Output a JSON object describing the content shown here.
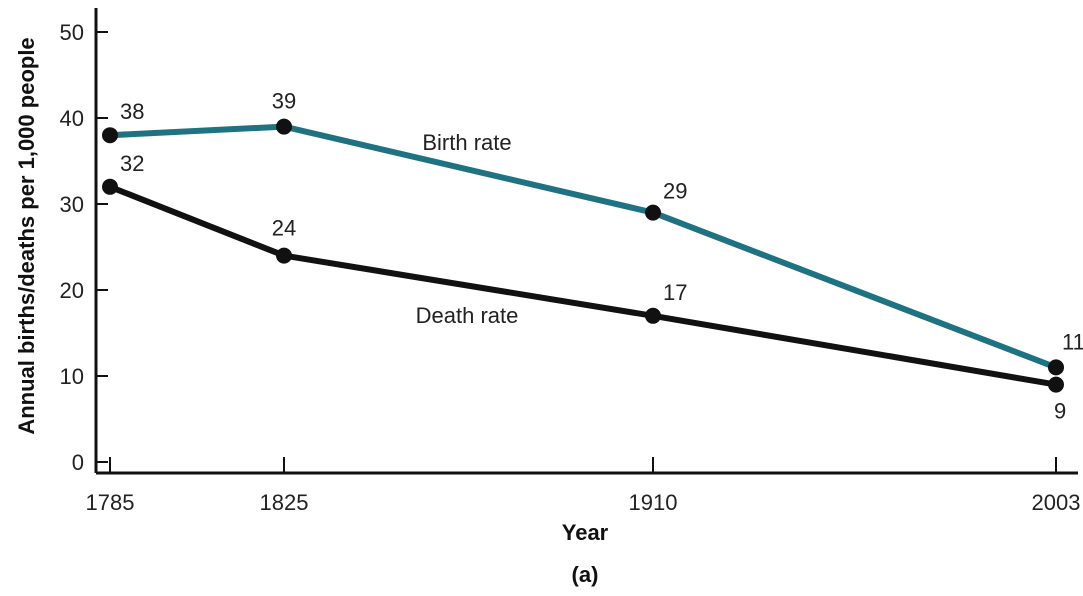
{
  "chart_data": {
    "type": "line",
    "xlabel": "Year",
    "ylabel": "Annual births/deaths per 1,000 people",
    "caption": "(a)",
    "x": [
      1785,
      1825,
      1910,
      2003
    ],
    "x_tick_labels": [
      "1785",
      "1825",
      "1910",
      "2003"
    ],
    "y_ticks": [
      0,
      10,
      20,
      30,
      40,
      50
    ],
    "y_tick_labels": [
      "0",
      "10",
      "20",
      "30",
      "40",
      "50"
    ],
    "ylim": [
      0,
      50
    ],
    "grid": false,
    "series": [
      {
        "name": "Birth rate",
        "color": "#1f7281",
        "values": [
          38,
          39,
          29,
          11
        ],
        "value_labels": [
          "38",
          "39",
          "29",
          "11"
        ]
      },
      {
        "name": "Death rate",
        "color": "#111111",
        "values": [
          32,
          24,
          17,
          9
        ],
        "value_labels": [
          "32",
          "24",
          "17",
          "9"
        ]
      }
    ]
  }
}
